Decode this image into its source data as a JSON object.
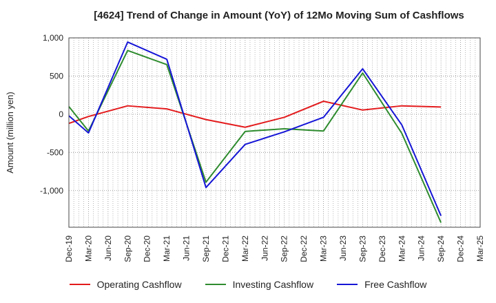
{
  "chart_data": {
    "type": "line",
    "title": "[4624]  Trend of Change in Amount (YoY) of 12Mo Moving Sum of Cashflows",
    "ylabel": "Amount (million yen)",
    "xlabel": "",
    "ylim": [
      -1480,
      1000
    ],
    "yticks": [
      1000,
      500,
      0,
      -500,
      -1000
    ],
    "ytick_labels": [
      "1,000",
      "500",
      "0",
      "-500",
      "-1,000"
    ],
    "categories": [
      "Dec-19",
      "Mar-20",
      "Jun-20",
      "Sep-20",
      "Dec-20",
      "Mar-21",
      "Jun-21",
      "Sep-21",
      "Dec-21",
      "Mar-22",
      "Jun-22",
      "Sep-22",
      "Dec-22",
      "Mar-23",
      "Jun-23",
      "Sep-23",
      "Dec-23",
      "Mar-24",
      "Jun-24",
      "Sep-24",
      "Dec-24",
      "Mar-25"
    ],
    "series": [
      {
        "name": "Operating Cashflow",
        "color": "#e31a1c",
        "values": [
          -120,
          -30,
          null,
          110,
          null,
          70,
          null,
          -70,
          null,
          -170,
          null,
          -40,
          null,
          170,
          null,
          55,
          null,
          110,
          null,
          95,
          null,
          null
        ]
      },
      {
        "name": "Investing Cashflow",
        "color": "#2e8b2e",
        "values": [
          100,
          -220,
          null,
          835,
          null,
          650,
          null,
          -890,
          null,
          -225,
          null,
          -190,
          null,
          -220,
          null,
          540,
          null,
          -250,
          null,
          -1420,
          null,
          null
        ]
      },
      {
        "name": "Free Cashflow",
        "color": "#1515d6",
        "values": [
          -20,
          -245,
          null,
          945,
          null,
          720,
          null,
          -960,
          null,
          -395,
          null,
          -230,
          null,
          -40,
          null,
          595,
          null,
          -140,
          null,
          -1330,
          null,
          null
        ]
      }
    ]
  }
}
